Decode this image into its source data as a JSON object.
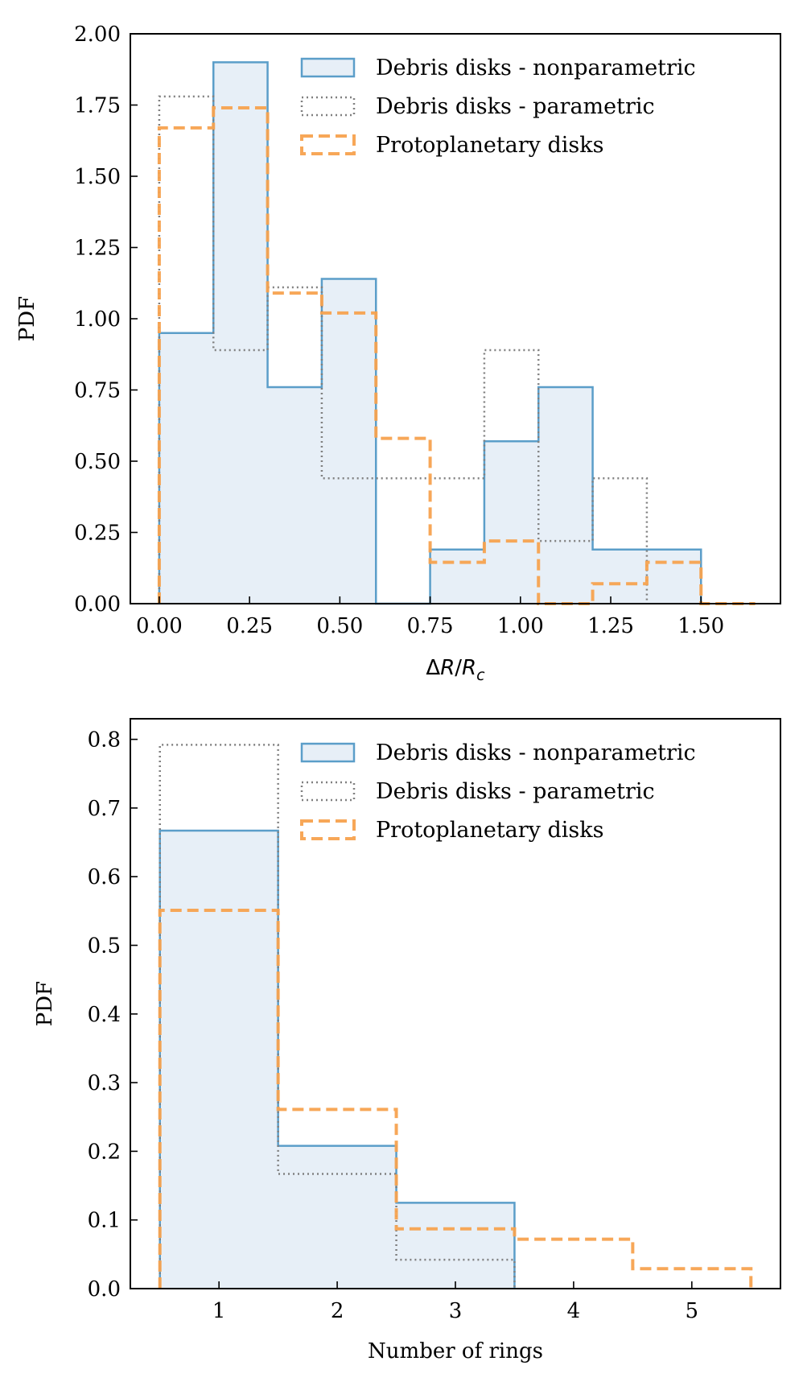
{
  "colors": {
    "nonparam": "#5b9ec9",
    "nonparam_fill": "#e7eff7",
    "param": "#808080",
    "proto": "#f7a24f",
    "axes": "#000000"
  },
  "legend_labels": [
    "Debris disks - nonparametric",
    "Debris disks - parametric",
    "Protoplanetary disks"
  ],
  "chart_data": [
    {
      "type": "histogram",
      "id": "width",
      "xlabel": "ΔR/R_c",
      "xlabel_parts": {
        "delta": "Δ",
        "r": "R",
        "slash": "/",
        "rc": "R",
        "sub": "c"
      },
      "ylabel": "PDF",
      "xlim": [
        -0.08,
        1.72
      ],
      "ylim": [
        0,
        2.0
      ],
      "xticks": [
        0.0,
        0.25,
        0.5,
        0.75,
        1.0,
        1.25,
        1.5
      ],
      "xtick_labels": [
        "0.00",
        "0.25",
        "0.50",
        "0.75",
        "1.00",
        "1.25",
        "1.50"
      ],
      "yticks": [
        0.0,
        0.25,
        0.5,
        0.75,
        1.0,
        1.25,
        1.5,
        1.75,
        2.0
      ],
      "ytick_labels": [
        "0.00",
        "0.25",
        "0.50",
        "0.75",
        "1.00",
        "1.25",
        "1.50",
        "1.75",
        "2.00"
      ],
      "legend_position": "upper-right",
      "series": [
        {
          "name": "Debris disks - nonparametric",
          "style": "solid-filled",
          "bins": [
            0,
            0.15,
            0.3,
            0.45,
            0.6,
            0.75,
            0.9,
            1.05,
            1.2,
            1.35,
            1.5
          ],
          "values": [
            0.95,
            1.9,
            0.76,
            1.14,
            0.0,
            0.19,
            0.57,
            0.76,
            0.19,
            0.19
          ]
        },
        {
          "name": "Debris disks - parametric",
          "style": "dotted",
          "bins": [
            0,
            0.15,
            0.3,
            0.45,
            0.6,
            0.75,
            0.9,
            1.05,
            1.2,
            1.35
          ],
          "values": [
            1.78,
            0.89,
            1.11,
            0.44,
            0.44,
            0.44,
            0.89,
            0.22,
            0.44
          ]
        },
        {
          "name": "Protoplanetary disks",
          "style": "dashed",
          "bins": [
            0,
            0.15,
            0.3,
            0.45,
            0.6,
            0.75,
            0.9,
            1.05,
            1.2,
            1.35,
            1.5,
            1.65
          ],
          "values": [
            1.67,
            1.74,
            1.09,
            1.02,
            0.58,
            0.145,
            0.22,
            0.0,
            0.07,
            0.145,
            0.0
          ]
        }
      ]
    },
    {
      "type": "histogram",
      "id": "rings",
      "xlabel": "Number of rings",
      "ylabel": "PDF",
      "xlim": [
        0.25,
        5.75
      ],
      "ylim": [
        0,
        0.83
      ],
      "xticks": [
        1,
        2,
        3,
        4,
        5
      ],
      "xtick_labels": [
        "1",
        "2",
        "3",
        "4",
        "5"
      ],
      "yticks": [
        0.0,
        0.1,
        0.2,
        0.3,
        0.4,
        0.5,
        0.6,
        0.7,
        0.8
      ],
      "ytick_labels": [
        "0.0",
        "0.1",
        "0.2",
        "0.3",
        "0.4",
        "0.5",
        "0.6",
        "0.7",
        "0.8"
      ],
      "legend_position": "upper-right",
      "series": [
        {
          "name": "Debris disks - nonparametric",
          "style": "solid-filled",
          "bins": [
            0.5,
            1.5,
            2.5,
            3.5
          ],
          "values": [
            0.667,
            0.208,
            0.125
          ]
        },
        {
          "name": "Debris disks - parametric",
          "style": "dotted",
          "bins": [
            0.5,
            1.5,
            2.5,
            3.5
          ],
          "values": [
            0.792,
            0.167,
            0.042
          ]
        },
        {
          "name": "Protoplanetary disks",
          "style": "dashed",
          "bins": [
            0.5,
            1.5,
            2.5,
            3.5,
            4.5,
            5.5
          ],
          "values": [
            0.551,
            0.261,
            0.087,
            0.072,
            0.029
          ]
        }
      ]
    }
  ]
}
